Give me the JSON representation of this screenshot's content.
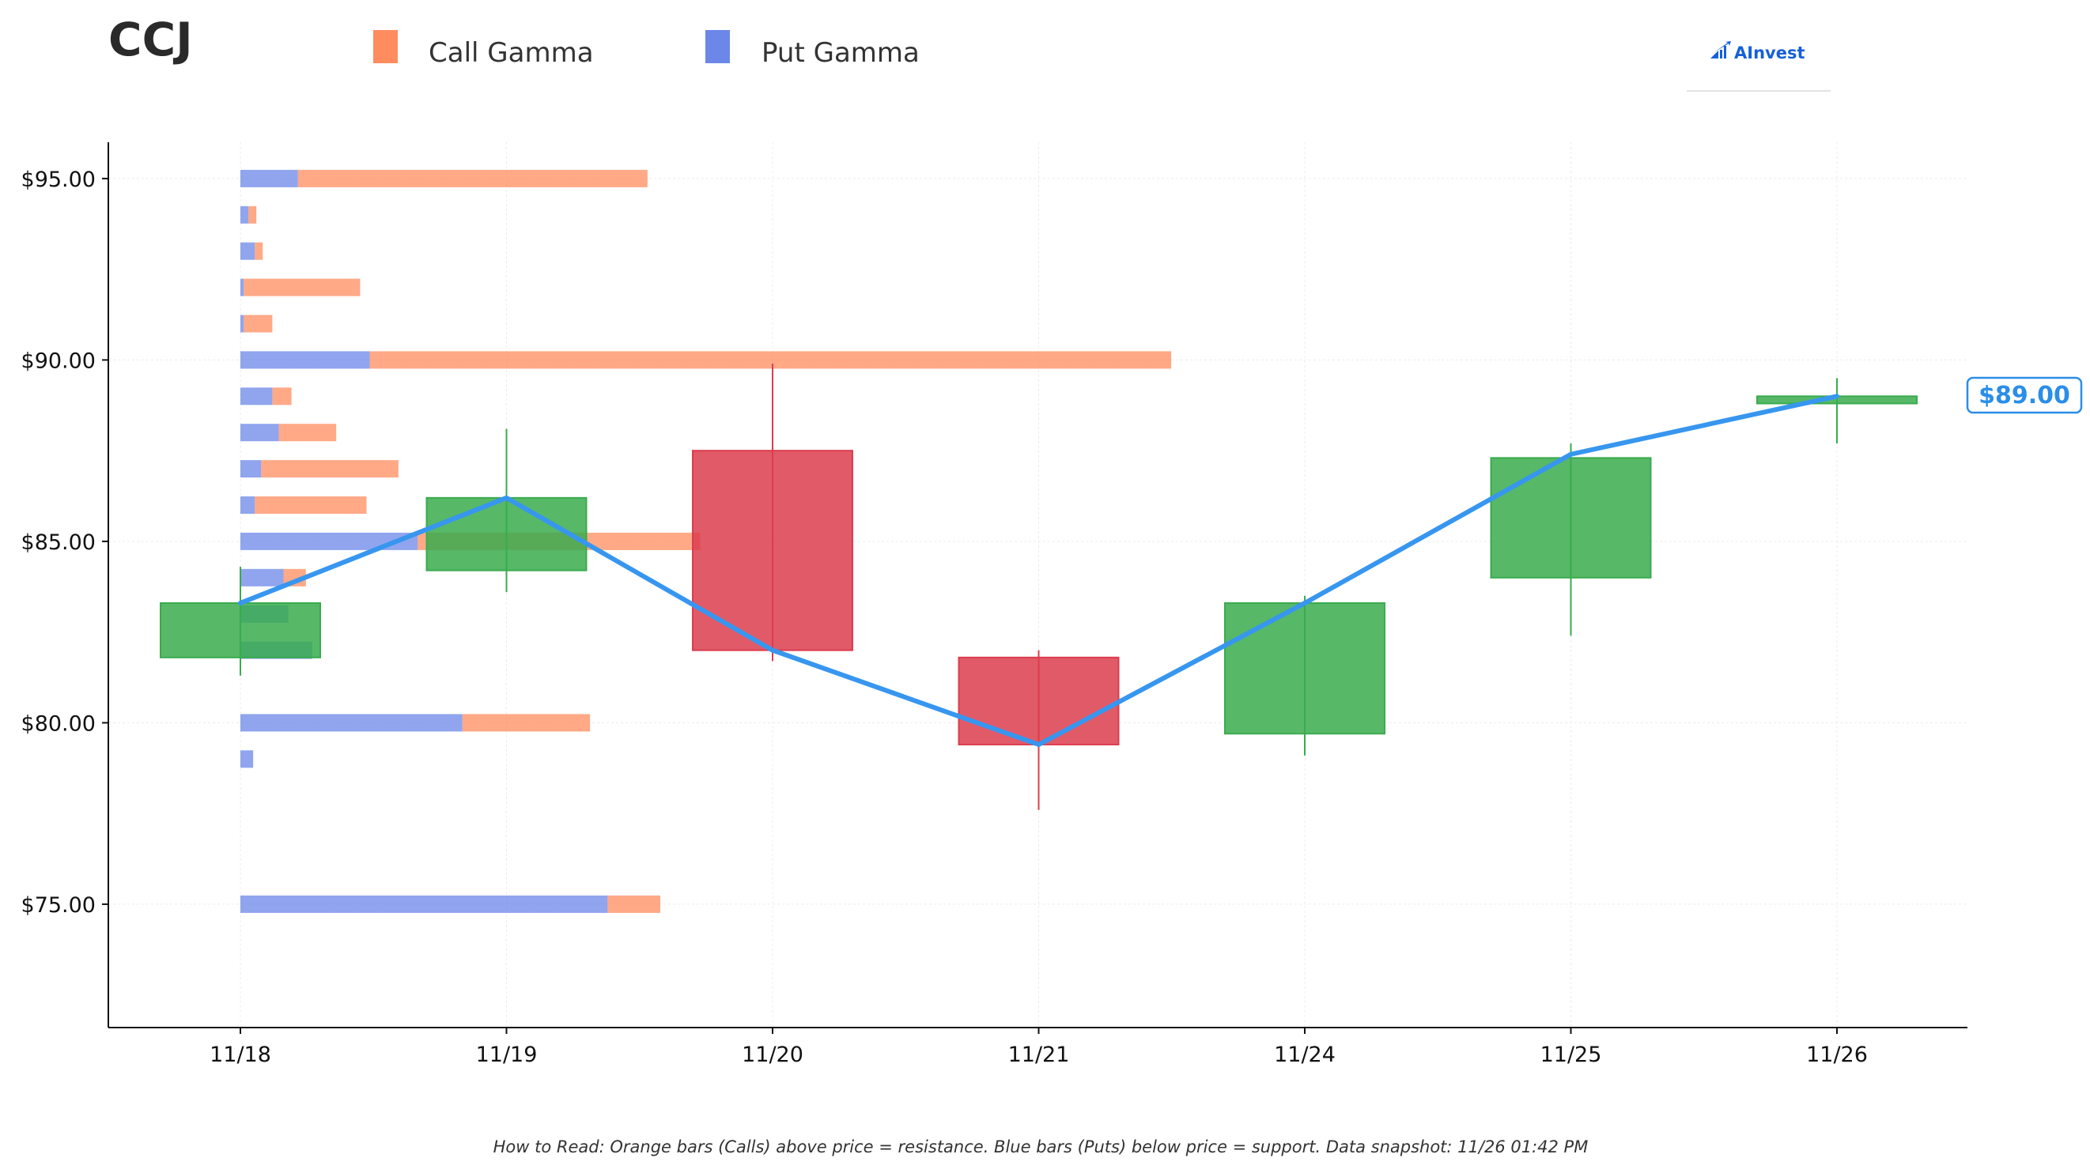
{
  "ticker": "CCJ",
  "logo": {
    "text": "AInvest",
    "icon": "ainvest-logo-icon"
  },
  "footnote": "How to Read: Orange bars (Calls) above price = resistance. Blue bars (Puts) below price = support. Data snapshot: 11/26 01:42 PM",
  "colors": {
    "call": "#ff8c5f",
    "put": "#6b87e8",
    "up": "#3aab4e",
    "down": "#dc3d4e",
    "price_line": "#3796ef",
    "axis": "#111111",
    "grid": "#ececec"
  },
  "chart_data": {
    "type": "candlestick",
    "legend": [
      {
        "name": "Call Gamma",
        "color": "#ff8c5f"
      },
      {
        "name": "Put Gamma",
        "color": "#6b87e8"
      }
    ],
    "legend_position": "top-left",
    "grid": true,
    "current_price_label": "$89.00",
    "y_ticks": [
      {
        "value": 75,
        "label": "$75.00"
      },
      {
        "value": 80,
        "label": "$80.00"
      },
      {
        "value": 85,
        "label": "$85.00"
      },
      {
        "value": 90,
        "label": "$90.00"
      },
      {
        "value": 95,
        "label": "$95.00"
      }
    ],
    "ylim": [
      71.6,
      96.0
    ],
    "categories": [
      "11/18",
      "11/19",
      "11/20",
      "11/21",
      "11/24",
      "11/25",
      "11/26"
    ],
    "candles": [
      {
        "date": "11/18",
        "open": 81.8,
        "close": 83.3,
        "high": 84.3,
        "low": 81.3
      },
      {
        "date": "11/19",
        "open": 84.2,
        "close": 86.2,
        "high": 88.1,
        "low": 83.6
      },
      {
        "date": "11/20",
        "open": 87.5,
        "close": 82.0,
        "high": 89.9,
        "low": 81.7
      },
      {
        "date": "11/21",
        "open": 81.8,
        "close": 79.4,
        "high": 82.0,
        "low": 77.6
      },
      {
        "date": "11/24",
        "open": 79.7,
        "close": 83.3,
        "high": 83.5,
        "low": 79.1
      },
      {
        "date": "11/25",
        "open": 84.0,
        "close": 87.3,
        "high": 87.7,
        "low": 82.4
      },
      {
        "date": "11/26",
        "open": 88.8,
        "close": 89.0,
        "high": 89.5,
        "low": 87.7
      }
    ],
    "price_line": [
      83.3,
      86.2,
      82.0,
      79.4,
      83.3,
      87.4,
      89.0
    ],
    "gamma_bars_x_units": "fraction of 11/18 to 11/26 span",
    "gamma_bars": [
      {
        "strike": 95,
        "put": 0.036,
        "call": 0.219
      },
      {
        "strike": 94,
        "put": 0.005,
        "call": 0.005
      },
      {
        "strike": 93,
        "put": 0.009,
        "call": 0.005
      },
      {
        "strike": 92,
        "put": 0.002,
        "call": 0.073
      },
      {
        "strike": 91,
        "put": 0.002,
        "call": 0.018
      },
      {
        "strike": 90,
        "put": 0.081,
        "call": 0.502
      },
      {
        "strike": 89,
        "put": 0.02,
        "call": 0.012
      },
      {
        "strike": 88,
        "put": 0.024,
        "call": 0.036
      },
      {
        "strike": 87,
        "put": 0.013,
        "call": 0.086
      },
      {
        "strike": 86,
        "put": 0.009,
        "call": 0.07
      },
      {
        "strike": 85,
        "put": 0.111,
        "call": 0.177
      },
      {
        "strike": 84,
        "put": 0.027,
        "call": 0.014
      },
      {
        "strike": 83,
        "put": 0.03,
        "call": 0.0
      },
      {
        "strike": 82,
        "put": 0.045,
        "call": 0.0
      },
      {
        "strike": 80,
        "put": 0.139,
        "call": 0.08
      },
      {
        "strike": 79,
        "put": 0.008,
        "call": 0.0
      },
      {
        "strike": 75,
        "put": 0.23,
        "call": 0.033
      }
    ]
  }
}
